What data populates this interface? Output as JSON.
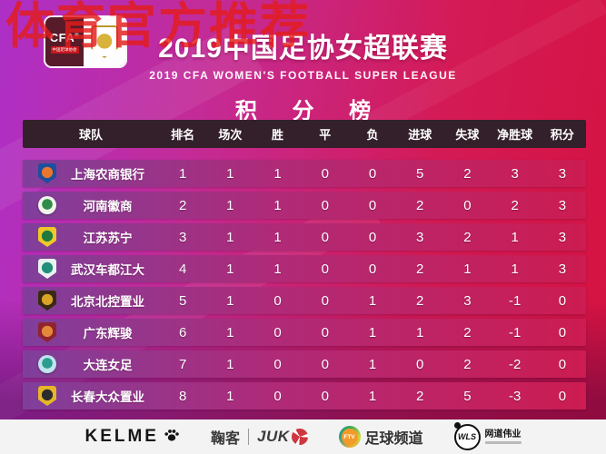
{
  "watermark": "体育官方推荐",
  "header": {
    "cfa_badge": {
      "cfa_text": "CFA",
      "reg_mark": "®",
      "cfa_sub": "中国足球协会"
    },
    "title": "2019中国足协女超联赛",
    "subtitle": "2019 CFA WOMEN'S FOOTBALL SUPER LEAGUE"
  },
  "chart_data": {
    "type": "table",
    "title": "积 分 榜",
    "columns": [
      "球队",
      "排名",
      "场次",
      "胜",
      "平",
      "负",
      "进球",
      "失球",
      "净胜球",
      "积分"
    ],
    "rows": [
      [
        "上海农商银行",
        1,
        1,
        1,
        0,
        0,
        5,
        2,
        3,
        3
      ],
      [
        "河南徽商",
        2,
        1,
        1,
        0,
        0,
        2,
        0,
        2,
        3
      ],
      [
        "江苏苏宁",
        3,
        1,
        1,
        0,
        0,
        3,
        2,
        1,
        3
      ],
      [
        "武汉车都江大",
        4,
        1,
        1,
        0,
        0,
        2,
        1,
        1,
        3
      ],
      [
        "北京北控置业",
        5,
        1,
        0,
        0,
        1,
        2,
        3,
        -1,
        0
      ],
      [
        "广东辉骏",
        6,
        1,
        0,
        0,
        1,
        1,
        2,
        -1,
        0
      ],
      [
        "大连女足",
        7,
        1,
        0,
        0,
        1,
        0,
        2,
        -2,
        0
      ],
      [
        "长春大众置业",
        8,
        1,
        0,
        0,
        1,
        2,
        5,
        -3,
        0
      ]
    ]
  },
  "team_logos": [
    {
      "shape": "shield",
      "base": "#1d4f9e",
      "accent": "#e8762c"
    },
    {
      "shape": "circle",
      "base": "#f2f5ec",
      "accent": "#2e8b4a"
    },
    {
      "shape": "shield",
      "base": "#eec829",
      "accent": "#1f7a3c"
    },
    {
      "shape": "shield",
      "base": "#e9f2ef",
      "accent": "#1f8f7a"
    },
    {
      "shape": "shield",
      "base": "#3a2a14",
      "accent": "#d9a427"
    },
    {
      "shape": "shield",
      "base": "#8f2430",
      "accent": "#e4893a"
    },
    {
      "shape": "circle",
      "base": "#bfe3ef",
      "accent": "#2a9d8f"
    },
    {
      "shape": "shield",
      "base": "#e5b52a",
      "accent": "#2b2b2b"
    }
  ],
  "footer": {
    "sponsors": [
      {
        "name": "KELME"
      },
      {
        "name": "鞠客",
        "latin": "JUK"
      },
      {
        "abbr": "FTV",
        "name": "足球频道"
      },
      {
        "abbr": "WLS",
        "name": "网道伟业"
      }
    ]
  },
  "colors": {
    "background_left": "#ad2fc7",
    "background_right": "#d51240",
    "table_header_bg": "#33202a",
    "row_gradient_left": "#7f3f9b",
    "row_gradient_right": "#cc1c51",
    "watermark_red": "#e41c1c",
    "footer_bg": "#f3f3f3"
  }
}
